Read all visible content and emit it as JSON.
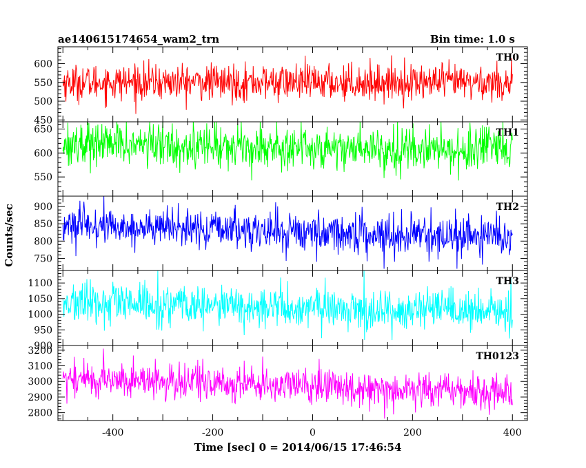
{
  "header": {
    "left_title": "ae140615174654_wam2_trn",
    "right_title": "Bin time: 1.0 s"
  },
  "axes": {
    "xlabel": "Time [sec] 0 = 2014/06/15 17:46:54",
    "ylabel": "Counts/sec"
  },
  "chart_data": {
    "type": "line",
    "title": "ae140615174654_wam2_trn",
    "subtitle": "Bin time: 1.0 s",
    "xlabel": "Time [sec] 0 = 2014/06/15 17:46:54",
    "ylabel": "Counts/sec",
    "xlim": [
      -510,
      430
    ],
    "data_x_range": [
      -500,
      400
    ],
    "bin_time_s": 1.0,
    "x_ticks": [
      -400,
      -200,
      0,
      200,
      400
    ],
    "grid": false,
    "legend": "none",
    "panels": [
      {
        "name": "TH0",
        "color": "#ff0000",
        "ylim": [
          445,
          645
        ],
        "y_ticks": [
          450,
          500,
          550,
          600
        ],
        "mean_start": 550,
        "mean_end": 550,
        "noise_sd": 24,
        "range": [
          450,
          645
        ]
      },
      {
        "name": "TH1",
        "color": "#00ff00",
        "ylim": [
          510,
          665
        ],
        "y_ticks": [
          550,
          600,
          650
        ],
        "mean_start": 620,
        "mean_end": 605,
        "noise_sd": 23,
        "range": [
          530,
          665
        ]
      },
      {
        "name": "TH2",
        "color": "#0000ff",
        "ylim": [
          715,
          930
        ],
        "y_ticks": [
          750,
          800,
          850,
          900
        ],
        "mean_start": 845,
        "mean_end": 810,
        "noise_sd": 28,
        "range": [
          720,
          930
        ]
      },
      {
        "name": "TH3",
        "color": "#00ffff",
        "ylim": [
          900,
          1140
        ],
        "y_ticks": [
          900,
          950,
          1000,
          1050,
          1100
        ],
        "mean_start": 1035,
        "mean_end": 1005,
        "noise_sd": 33,
        "range": [
          900,
          1140
        ]
      },
      {
        "name": "TH0123",
        "color": "#ff00ff",
        "ylim": [
          2750,
          3230
        ],
        "y_ticks": [
          2800,
          2900,
          3000,
          3100,
          3200
        ],
        "mean_start": 3020,
        "mean_end": 2930,
        "noise_sd": 58,
        "range": [
          2760,
          3230
        ]
      }
    ]
  }
}
